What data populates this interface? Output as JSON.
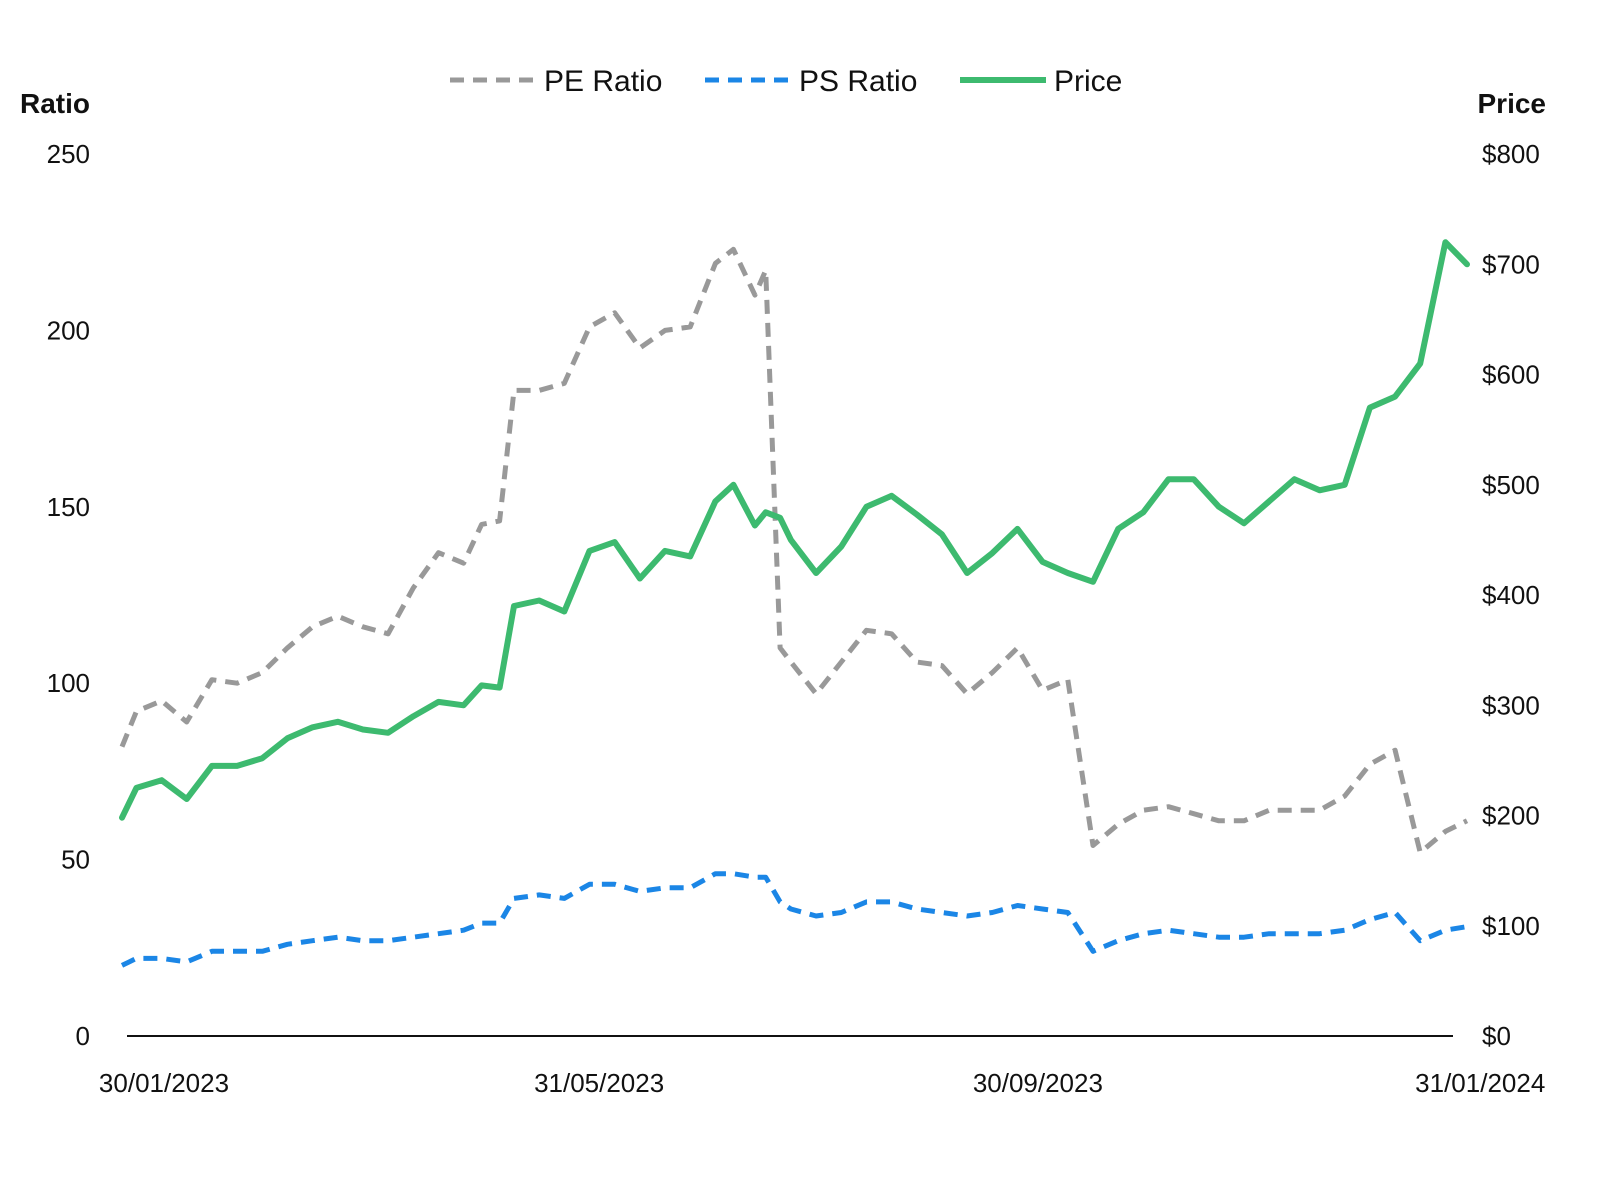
{
  "chart_data": {
    "type": "line",
    "x_type": "date",
    "date_format": "DD/MM/YYYY",
    "x_range": [
      "2023-01-30",
      "2024-02-08"
    ],
    "x_ticks": [
      "2023-01-30",
      "2023-05-31",
      "2023-09-30",
      "2024-01-31"
    ],
    "x_tick_labels": [
      "30/01/2023",
      "31/05/2023",
      "30/09/2023",
      "31/01/2024"
    ],
    "y_left": {
      "label": "Ratio",
      "ylim": [
        0,
        250
      ],
      "ticks": [
        0,
        50,
        100,
        150,
        200,
        250
      ],
      "tick_labels": [
        "0",
        "50",
        "100",
        "150",
        "200",
        "250"
      ]
    },
    "y_right": {
      "label": "Price",
      "ylim": [
        0,
        800
      ],
      "ticks": [
        0,
        100,
        200,
        300,
        400,
        500,
        600,
        700,
        800
      ],
      "tick_labels": [
        "$0",
        "$100",
        "$200",
        "$300",
        "$400",
        "$500",
        "$600",
        "$700",
        "$800"
      ]
    },
    "grid": false,
    "legend_position": "top-center",
    "series": [
      {
        "name": "PE Ratio",
        "axis": "left",
        "style": "dashed",
        "color": "#999999",
        "x": [
          "2023-01-30",
          "2023-02-03",
          "2023-02-10",
          "2023-02-17",
          "2023-02-24",
          "2023-03-03",
          "2023-03-10",
          "2023-03-17",
          "2023-03-24",
          "2023-03-31",
          "2023-04-07",
          "2023-04-14",
          "2023-04-21",
          "2023-04-28",
          "2023-05-05",
          "2023-05-10",
          "2023-05-15",
          "2023-05-19",
          "2023-05-26",
          "2023-06-02",
          "2023-06-09",
          "2023-06-16",
          "2023-06-23",
          "2023-06-30",
          "2023-07-07",
          "2023-07-14",
          "2023-07-19",
          "2023-07-25",
          "2023-07-28",
          "2023-08-01",
          "2023-08-04",
          "2023-08-11",
          "2023-08-18",
          "2023-08-25",
          "2023-09-01",
          "2023-09-08",
          "2023-09-15",
          "2023-09-22",
          "2023-09-29",
          "2023-10-06",
          "2023-10-13",
          "2023-10-20",
          "2023-10-27",
          "2023-11-03",
          "2023-11-10",
          "2023-11-17",
          "2023-11-24",
          "2023-12-01",
          "2023-12-08",
          "2023-12-15",
          "2023-12-22",
          "2023-12-29",
          "2024-01-05",
          "2024-01-12",
          "2024-01-19",
          "2024-01-26",
          "2024-02-02",
          "2024-02-08"
        ],
        "values": [
          82,
          92,
          95,
          89,
          101,
          100,
          103,
          110,
          116,
          119,
          116,
          114,
          127,
          137,
          134,
          145,
          146,
          183,
          183,
          185,
          201,
          205,
          195,
          200,
          201,
          219,
          223,
          210,
          217,
          110,
          106,
          97,
          106,
          115,
          114,
          106,
          105,
          97,
          103,
          110,
          98,
          101,
          54,
          60,
          64,
          65,
          63,
          61,
          61,
          64,
          64,
          64,
          68,
          77,
          81,
          52,
          58,
          61
        ]
      },
      {
        "name": "PS Ratio",
        "axis": "left",
        "style": "dashed",
        "color": "#1b86e6",
        "x": [
          "2023-01-30",
          "2023-02-03",
          "2023-02-10",
          "2023-02-17",
          "2023-02-24",
          "2023-03-03",
          "2023-03-10",
          "2023-03-17",
          "2023-03-24",
          "2023-03-31",
          "2023-04-07",
          "2023-04-14",
          "2023-04-21",
          "2023-04-28",
          "2023-05-05",
          "2023-05-10",
          "2023-05-15",
          "2023-05-19",
          "2023-05-26",
          "2023-06-02",
          "2023-06-09",
          "2023-06-16",
          "2023-06-23",
          "2023-06-30",
          "2023-07-07",
          "2023-07-14",
          "2023-07-19",
          "2023-07-25",
          "2023-07-28",
          "2023-08-01",
          "2023-08-04",
          "2023-08-11",
          "2023-08-18",
          "2023-08-25",
          "2023-09-01",
          "2023-09-08",
          "2023-09-15",
          "2023-09-22",
          "2023-09-29",
          "2023-10-06",
          "2023-10-13",
          "2023-10-20",
          "2023-10-27",
          "2023-11-03",
          "2023-11-10",
          "2023-11-17",
          "2023-11-24",
          "2023-12-01",
          "2023-12-08",
          "2023-12-15",
          "2023-12-22",
          "2023-12-29",
          "2024-01-05",
          "2024-01-12",
          "2024-01-19",
          "2024-01-26",
          "2024-02-02",
          "2024-02-08"
        ],
        "values": [
          20,
          22,
          22,
          21,
          24,
          24,
          24,
          26,
          27,
          28,
          27,
          27,
          28,
          29,
          30,
          32,
          32,
          39,
          40,
          39,
          43,
          43,
          41,
          42,
          42,
          46,
          46,
          45,
          45,
          38,
          36,
          34,
          35,
          38,
          38,
          36,
          35,
          34,
          35,
          37,
          36,
          35,
          24,
          27,
          29,
          30,
          29,
          28,
          28,
          29,
          29,
          29,
          30,
          33,
          35,
          27,
          30,
          31
        ]
      },
      {
        "name": "Price",
        "axis": "right",
        "style": "solid",
        "color": "#3dba6f",
        "x": [
          "2023-01-30",
          "2023-02-03",
          "2023-02-10",
          "2023-02-17",
          "2023-02-24",
          "2023-03-03",
          "2023-03-10",
          "2023-03-17",
          "2023-03-24",
          "2023-03-31",
          "2023-04-07",
          "2023-04-14",
          "2023-04-21",
          "2023-04-28",
          "2023-05-05",
          "2023-05-10",
          "2023-05-15",
          "2023-05-19",
          "2023-05-26",
          "2023-06-02",
          "2023-06-09",
          "2023-06-16",
          "2023-06-23",
          "2023-06-30",
          "2023-07-07",
          "2023-07-14",
          "2023-07-19",
          "2023-07-25",
          "2023-07-28",
          "2023-08-01",
          "2023-08-04",
          "2023-08-11",
          "2023-08-18",
          "2023-08-25",
          "2023-09-01",
          "2023-09-08",
          "2023-09-15",
          "2023-09-22",
          "2023-09-29",
          "2023-10-06",
          "2023-10-13",
          "2023-10-20",
          "2023-10-27",
          "2023-11-03",
          "2023-11-10",
          "2023-11-17",
          "2023-11-24",
          "2023-12-01",
          "2023-12-08",
          "2023-12-15",
          "2023-12-22",
          "2023-12-29",
          "2024-01-05",
          "2024-01-12",
          "2024-01-19",
          "2024-01-26",
          "2024-02-02",
          "2024-02-08"
        ],
        "values": [
          198,
          225,
          232,
          215,
          245,
          245,
          252,
          270,
          280,
          285,
          278,
          275,
          290,
          303,
          300,
          318,
          316,
          390,
          395,
          385,
          440,
          448,
          415,
          440,
          435,
          485,
          500,
          463,
          475,
          470,
          450,
          420,
          444,
          480,
          490,
          473,
          455,
          420,
          438,
          460,
          430,
          420,
          412,
          460,
          475,
          505,
          505,
          480,
          465,
          485,
          505,
          495,
          500,
          570,
          580,
          610,
          720,
          700
        ]
      }
    ]
  }
}
